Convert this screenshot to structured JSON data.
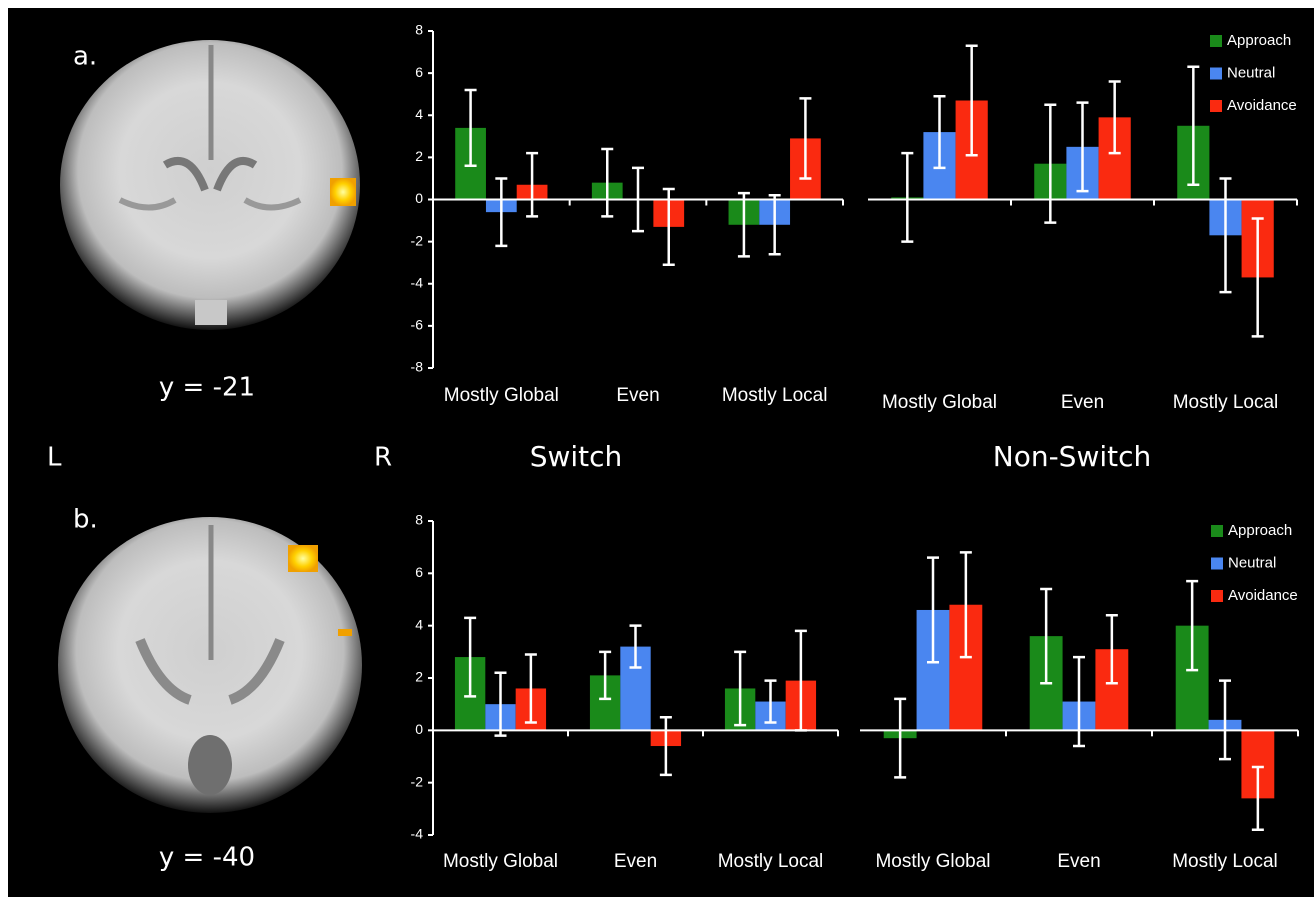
{
  "figure": {
    "panel_labels": [
      "a.",
      "b."
    ],
    "coordinates": [
      "y = -21",
      "y = -40"
    ],
    "hemisphere_labels": [
      "L",
      "R"
    ],
    "column_titles": [
      "Switch",
      "Non-Switch"
    ]
  },
  "chart_data": [
    {
      "type": "bar",
      "categories": [
        "Mostly Global",
        "Even",
        "Mostly Local"
      ],
      "ylim": [
        -8,
        8
      ],
      "yticks": [
        -8,
        -6,
        -4,
        -2,
        0,
        2,
        4,
        6,
        8
      ],
      "series": [
        {
          "name": "Approach",
          "color": "#1a8a1a",
          "values": [
            3.4,
            0.8,
            -1.2
          ],
          "errors": [
            1.8,
            1.6,
            1.5
          ]
        },
        {
          "name": "Neutral",
          "color": "#4a86f0",
          "values": [
            -0.6,
            0,
            -1.2
          ],
          "errors": [
            1.6,
            1.5,
            1.4
          ]
        },
        {
          "name": "Avoidance",
          "color": "#fa2a10",
          "values": [
            0.7,
            -1.3,
            2.9
          ],
          "errors": [
            1.5,
            1.8,
            1.9
          ]
        }
      ]
    },
    {
      "type": "bar",
      "categories": [
        "Mostly Global",
        "Even",
        "Mostly Local"
      ],
      "ylim": [
        -8,
        8
      ],
      "legend": "upper right",
      "series": [
        {
          "name": "Approach",
          "color": "#1a8a1a",
          "values": [
            0.1,
            1.7,
            3.5
          ],
          "errors": [
            2.1,
            2.8,
            2.8
          ]
        },
        {
          "name": "Neutral",
          "color": "#4a86f0",
          "values": [
            3.2,
            2.5,
            -1.7
          ],
          "errors": [
            1.7,
            2.1,
            2.7
          ]
        },
        {
          "name": "Avoidance",
          "color": "#fa2a10",
          "values": [
            4.7,
            3.9,
            -3.7
          ],
          "errors": [
            2.6,
            1.7,
            2.8
          ]
        }
      ]
    },
    {
      "type": "bar",
      "categories": [
        "Mostly Global",
        "Even",
        "Mostly Local"
      ],
      "ylim": [
        -4,
        8
      ],
      "yticks": [
        -4,
        -2,
        0,
        2,
        4,
        6,
        8
      ],
      "series": [
        {
          "name": "Approach",
          "color": "#1a8a1a",
          "values": [
            2.8,
            2.1,
            1.6
          ],
          "errors": [
            1.5,
            0.9,
            1.4
          ]
        },
        {
          "name": "Neutral",
          "color": "#4a86f0",
          "values": [
            1.0,
            3.2,
            1.1
          ],
          "errors": [
            1.2,
            0.8,
            0.8
          ]
        },
        {
          "name": "Avoidance",
          "color": "#fa2a10",
          "values": [
            1.6,
            -0.6,
            1.9
          ],
          "errors": [
            1.3,
            1.1,
            1.9
          ]
        }
      ]
    },
    {
      "type": "bar",
      "categories": [
        "Mostly Global",
        "Even",
        "Mostly Local"
      ],
      "ylim": [
        -4,
        8
      ],
      "legend": "upper right",
      "series": [
        {
          "name": "Approach",
          "color": "#1a8a1a",
          "values": [
            -0.3,
            3.6,
            4.0
          ],
          "errors": [
            1.5,
            1.8,
            1.7
          ]
        },
        {
          "name": "Neutral",
          "color": "#4a86f0",
          "values": [
            4.6,
            1.1,
            0.4
          ],
          "errors": [
            2.0,
            1.7,
            1.5
          ]
        },
        {
          "name": "Avoidance",
          "color": "#fa2a10",
          "values": [
            4.8,
            3.1,
            -2.6
          ],
          "errors": [
            2.0,
            1.3,
            1.2
          ]
        }
      ]
    }
  ]
}
